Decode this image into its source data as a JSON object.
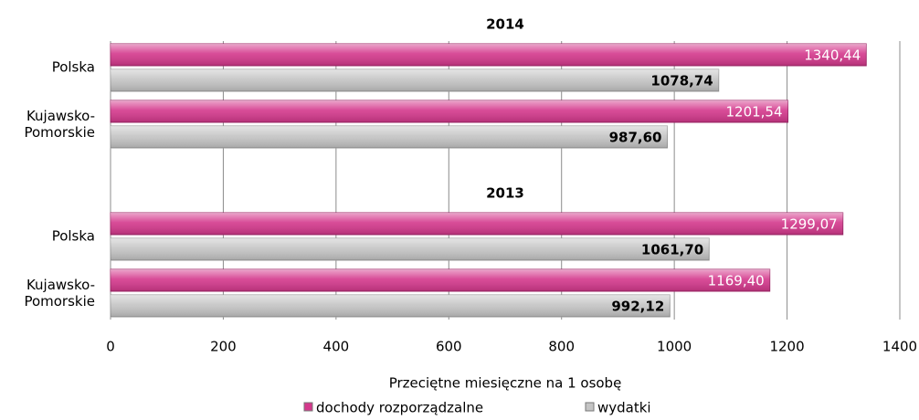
{
  "chart_data": {
    "type": "bar",
    "orientation": "horizontal",
    "group_labels": [
      "2014",
      "2013"
    ],
    "categories": [
      "Polska",
      "Kujawsko-Pomorskie",
      "Polska",
      "Kujawsko-Pomorskie"
    ],
    "series": [
      {
        "name": "dochody rozporządzalne",
        "color": "#d4388c",
        "values": [
          1340.44,
          1201.54,
          1299.07,
          1169.4
        ],
        "value_labels": [
          "1340,44",
          "1201,54",
          "1299,07",
          "1169,40"
        ]
      },
      {
        "name": "wydatki",
        "color": "#c4c4c4",
        "values": [
          1078.74,
          987.6,
          1061.7,
          992.12
        ],
        "value_labels": [
          "1078,74",
          "987,60",
          "1061,70",
          "992,12"
        ]
      }
    ],
    "xlabel": "Przeciętne miesięczne na 1 osobę",
    "xlim": [
      0,
      1400
    ],
    "xticks": [
      0,
      200,
      400,
      600,
      800,
      1000,
      1200,
      1400
    ],
    "grid": true
  }
}
